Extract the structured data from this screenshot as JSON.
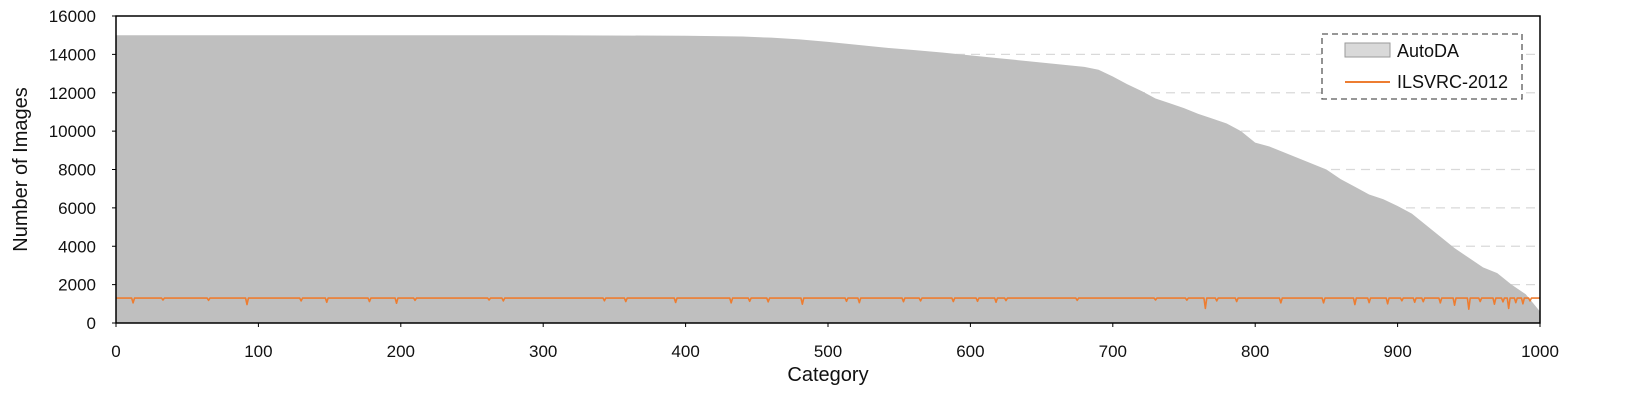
{
  "chart_data": {
    "type": "area",
    "title": "",
    "xlabel": "Category",
    "ylabel": "Number of Images",
    "xlim": [
      0,
      1000
    ],
    "ylim": [
      0,
      16000
    ],
    "x_ticks": [
      0,
      100,
      200,
      300,
      400,
      500,
      600,
      700,
      800,
      900,
      1000
    ],
    "y_ticks": [
      0,
      2000,
      4000,
      6000,
      8000,
      10000,
      12000,
      14000,
      16000
    ],
    "grid": "horizontal dashed, visible only right of the filled area",
    "legend_position": "top-right",
    "colors": {
      "autoda": "#bfbfbf",
      "ilsvrc": "#ed7d31",
      "grid": "#d9d9d9"
    },
    "series": [
      {
        "name": "AutoDA",
        "style": "area",
        "x": [
          0,
          100,
          200,
          300,
          400,
          440,
          460,
          480,
          500,
          520,
          540,
          560,
          580,
          600,
          620,
          640,
          660,
          680,
          690,
          700,
          710,
          720,
          730,
          740,
          750,
          760,
          770,
          780,
          790,
          800,
          810,
          820,
          830,
          840,
          850,
          860,
          870,
          880,
          890,
          900,
          910,
          920,
          930,
          940,
          950,
          960,
          970,
          980,
          990,
          1000
        ],
        "values": [
          15000,
          15000,
          15000,
          15000,
          14970,
          14930,
          14870,
          14780,
          14650,
          14500,
          14350,
          14230,
          14100,
          13950,
          13800,
          13650,
          13500,
          13350,
          13200,
          12850,
          12450,
          12100,
          11700,
          11450,
          11200,
          10900,
          10650,
          10400,
          10000,
          9400,
          9200,
          8900,
          8600,
          8300,
          8000,
          7500,
          7100,
          6700,
          6450,
          6100,
          5700,
          5100,
          4500,
          3900,
          3400,
          2900,
          2600,
          2000,
          1500,
          600
        ]
      },
      {
        "name": "ILSVRC-2012",
        "style": "line",
        "base_value": 1300,
        "dips": [
          {
            "x": 12,
            "y": 1050
          },
          {
            "x": 33,
            "y": 1200
          },
          {
            "x": 65,
            "y": 1180
          },
          {
            "x": 92,
            "y": 960
          },
          {
            "x": 130,
            "y": 1150
          },
          {
            "x": 148,
            "y": 1080
          },
          {
            "x": 178,
            "y": 1120
          },
          {
            "x": 197,
            "y": 1030
          },
          {
            "x": 210,
            "y": 1180
          },
          {
            "x": 262,
            "y": 1200
          },
          {
            "x": 272,
            "y": 1150
          },
          {
            "x": 343,
            "y": 1160
          },
          {
            "x": 358,
            "y": 1120
          },
          {
            "x": 393,
            "y": 1070
          },
          {
            "x": 432,
            "y": 1050
          },
          {
            "x": 445,
            "y": 1130
          },
          {
            "x": 458,
            "y": 1100
          },
          {
            "x": 482,
            "y": 980
          },
          {
            "x": 513,
            "y": 1130
          },
          {
            "x": 522,
            "y": 1060
          },
          {
            "x": 553,
            "y": 1110
          },
          {
            "x": 565,
            "y": 1150
          },
          {
            "x": 588,
            "y": 1120
          },
          {
            "x": 605,
            "y": 1130
          },
          {
            "x": 618,
            "y": 1080
          },
          {
            "x": 625,
            "y": 1170
          },
          {
            "x": 675,
            "y": 1180
          },
          {
            "x": 730,
            "y": 1200
          },
          {
            "x": 752,
            "y": 1190
          },
          {
            "x": 765,
            "y": 760
          },
          {
            "x": 773,
            "y": 1150
          },
          {
            "x": 787,
            "y": 1120
          },
          {
            "x": 818,
            "y": 1050
          },
          {
            "x": 848,
            "y": 1050
          },
          {
            "x": 870,
            "y": 960
          },
          {
            "x": 880,
            "y": 1060
          },
          {
            "x": 893,
            "y": 1000
          },
          {
            "x": 903,
            "y": 1160
          },
          {
            "x": 912,
            "y": 1080
          },
          {
            "x": 918,
            "y": 1110
          },
          {
            "x": 930,
            "y": 1050
          },
          {
            "x": 940,
            "y": 930
          },
          {
            "x": 950,
            "y": 720
          },
          {
            "x": 958,
            "y": 1120
          },
          {
            "x": 968,
            "y": 980
          },
          {
            "x": 974,
            "y": 1100
          },
          {
            "x": 978,
            "y": 760
          },
          {
            "x": 983,
            "y": 1060
          },
          {
            "x": 988,
            "y": 1000
          },
          {
            "x": 993,
            "y": 1150
          }
        ]
      }
    ]
  }
}
